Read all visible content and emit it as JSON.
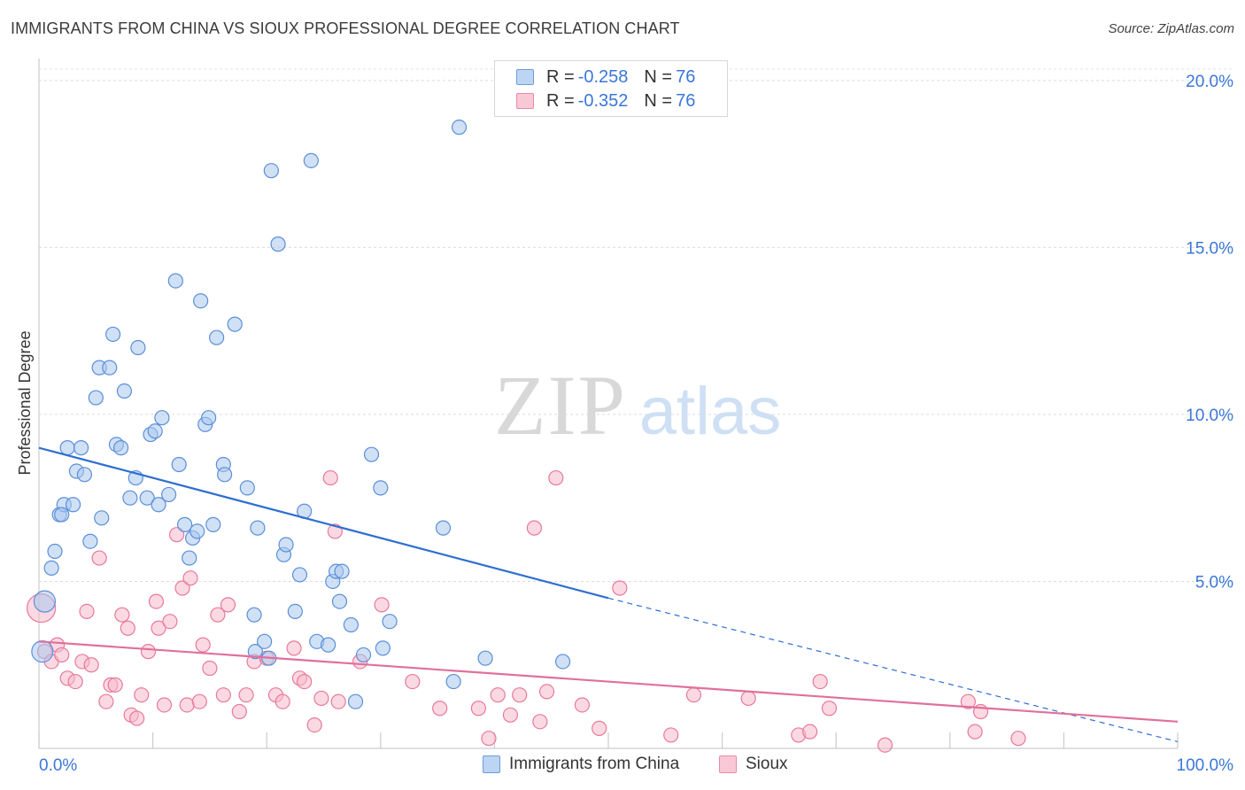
{
  "header": {
    "title": "IMMIGRANTS FROM CHINA VS SIOUX PROFESSIONAL DEGREE CORRELATION CHART",
    "source": "Source: ZipAtlas.com"
  },
  "watermark": {
    "zip": "ZIP",
    "atlas": "atlas"
  },
  "legend_top": {
    "rows": [
      {
        "r_label": "R =",
        "r_value": "-0.258",
        "n_label": "N =",
        "n_value": "76"
      },
      {
        "r_label": "R =",
        "r_value": "-0.352",
        "n_label": "N =",
        "n_value": "76"
      }
    ]
  },
  "legend_bottom": {
    "series1": "Immigrants from China",
    "series2": "Sioux"
  },
  "chart_data": {
    "type": "scatter",
    "title": "IMMIGRANTS FROM CHINA VS SIOUX PROFESSIONAL DEGREE CORRELATION CHART",
    "xlabel": "",
    "ylabel": "Professional Degree",
    "xlim": [
      0,
      100
    ],
    "ylim": [
      0,
      20.5
    ],
    "x_tick_labels": [
      "0.0%",
      "100.0%"
    ],
    "y_ticks": [
      5,
      10,
      15,
      20
    ],
    "y_tick_labels": [
      "5.0%",
      "10.0%",
      "15.0%",
      "20.0%"
    ],
    "grid": true,
    "legend_position": "top-center and bottom",
    "colors": {
      "china_fill": "#a9c8ef",
      "china_stroke": "#5b8fd8",
      "china_line": "#2f6fd0",
      "sioux_fill": "#f7b9cc",
      "sioux_stroke": "#e8799b",
      "sioux_line": "#e0709a",
      "tick_label": "#3a77d8"
    },
    "series": [
      {
        "name": "Immigrants from China",
        "r": -0.258,
        "n": 76,
        "trend": {
          "x": [
            0,
            50
          ],
          "y": [
            9.0,
            4.5
          ],
          "dashed_to": [
            100,
            0.2
          ]
        },
        "points": [
          [
            0.5,
            4.4
          ],
          [
            0.3,
            2.9
          ],
          [
            1.1,
            5.4
          ],
          [
            1.4,
            5.9
          ],
          [
            1.8,
            7.0
          ],
          [
            2.2,
            7.3
          ],
          [
            3.0,
            7.3
          ],
          [
            2.5,
            9.0
          ],
          [
            3.7,
            9.0
          ],
          [
            3.3,
            8.3
          ],
          [
            4.0,
            8.2
          ],
          [
            4.5,
            6.2
          ],
          [
            5.5,
            6.9
          ],
          [
            5.0,
            10.5
          ],
          [
            5.3,
            11.4
          ],
          [
            6.2,
            11.4
          ],
          [
            6.5,
            12.4
          ],
          [
            7.5,
            10.7
          ],
          [
            6.8,
            9.1
          ],
          [
            7.2,
            9.0
          ],
          [
            8.0,
            7.5
          ],
          [
            8.5,
            8.1
          ],
          [
            8.7,
            12.0
          ],
          [
            9.5,
            7.5
          ],
          [
            9.8,
            9.4
          ],
          [
            10.2,
            9.5
          ],
          [
            10.5,
            7.3
          ],
          [
            10.8,
            9.9
          ],
          [
            11.4,
            7.6
          ],
          [
            12.0,
            14.0
          ],
          [
            12.3,
            8.5
          ],
          [
            12.8,
            6.7
          ],
          [
            13.2,
            5.7
          ],
          [
            13.5,
            6.3
          ],
          [
            13.9,
            6.5
          ],
          [
            14.2,
            13.4
          ],
          [
            14.6,
            9.7
          ],
          [
            14.9,
            9.9
          ],
          [
            15.3,
            6.7
          ],
          [
            15.6,
            12.3
          ],
          [
            16.2,
            8.5
          ],
          [
            16.3,
            8.2
          ],
          [
            17.2,
            12.7
          ],
          [
            18.3,
            7.8
          ],
          [
            18.9,
            4.0
          ],
          [
            19.2,
            6.6
          ],
          [
            19.0,
            2.9
          ],
          [
            19.8,
            3.2
          ],
          [
            20.2,
            2.7
          ],
          [
            20.4,
            17.3
          ],
          [
            21.0,
            15.1
          ],
          [
            21.5,
            5.8
          ],
          [
            21.7,
            6.1
          ],
          [
            22.5,
            4.1
          ],
          [
            22.9,
            5.2
          ],
          [
            23.3,
            7.1
          ],
          [
            23.9,
            17.6
          ],
          [
            24.4,
            3.2
          ],
          [
            25.4,
            3.1
          ],
          [
            25.8,
            5.0
          ],
          [
            26.1,
            5.3
          ],
          [
            26.6,
            5.3
          ],
          [
            26.4,
            4.4
          ],
          [
            27.4,
            3.7
          ],
          [
            27.8,
            1.4
          ],
          [
            28.5,
            2.8
          ],
          [
            29.2,
            8.8
          ],
          [
            30.0,
            7.8
          ],
          [
            30.2,
            3.0
          ],
          [
            30.8,
            3.8
          ],
          [
            35.5,
            6.6
          ],
          [
            36.4,
            2.0
          ],
          [
            36.9,
            18.6
          ],
          [
            39.2,
            2.7
          ],
          [
            46.0,
            2.6
          ],
          [
            2.0,
            7.0
          ]
        ]
      },
      {
        "name": "Sioux",
        "r": -0.352,
        "n": 76,
        "trend": {
          "x": [
            0,
            100
          ],
          "y": [
            3.2,
            0.8
          ]
        },
        "points": [
          [
            0.2,
            4.2
          ],
          [
            0.5,
            2.9
          ],
          [
            1.1,
            2.6
          ],
          [
            1.6,
            3.1
          ],
          [
            2.0,
            2.8
          ],
          [
            2.5,
            2.1
          ],
          [
            3.2,
            2.0
          ],
          [
            3.8,
            2.6
          ],
          [
            4.2,
            4.1
          ],
          [
            4.6,
            2.5
          ],
          [
            5.3,
            5.7
          ],
          [
            5.9,
            1.4
          ],
          [
            6.3,
            1.9
          ],
          [
            6.7,
            1.9
          ],
          [
            7.3,
            4.0
          ],
          [
            7.8,
            3.6
          ],
          [
            8.1,
            1.0
          ],
          [
            8.6,
            0.9
          ],
          [
            9.0,
            1.6
          ],
          [
            9.6,
            2.9
          ],
          [
            10.3,
            4.4
          ],
          [
            10.5,
            3.6
          ],
          [
            11.0,
            1.3
          ],
          [
            11.5,
            3.8
          ],
          [
            12.1,
            6.4
          ],
          [
            12.6,
            4.8
          ],
          [
            13.0,
            1.3
          ],
          [
            13.3,
            5.1
          ],
          [
            14.1,
            1.4
          ],
          [
            14.4,
            3.1
          ],
          [
            15.0,
            2.4
          ],
          [
            15.7,
            4.0
          ],
          [
            16.2,
            1.6
          ],
          [
            16.6,
            4.3
          ],
          [
            17.6,
            1.1
          ],
          [
            18.2,
            1.6
          ],
          [
            18.9,
            2.6
          ],
          [
            20.0,
            2.7
          ],
          [
            20.8,
            1.6
          ],
          [
            21.4,
            1.4
          ],
          [
            22.4,
            3.0
          ],
          [
            22.9,
            2.1
          ],
          [
            23.3,
            2.0
          ],
          [
            24.2,
            0.7
          ],
          [
            24.8,
            1.5
          ],
          [
            25.6,
            8.1
          ],
          [
            26.0,
            6.5
          ],
          [
            26.3,
            1.4
          ],
          [
            28.2,
            2.6
          ],
          [
            30.1,
            4.3
          ],
          [
            32.8,
            2.0
          ],
          [
            35.2,
            1.2
          ],
          [
            38.6,
            1.2
          ],
          [
            39.5,
            0.3
          ],
          [
            40.3,
            1.6
          ],
          [
            41.4,
            1.0
          ],
          [
            42.2,
            1.6
          ],
          [
            43.5,
            6.6
          ],
          [
            44.0,
            0.8
          ],
          [
            44.6,
            1.7
          ],
          [
            45.4,
            8.1
          ],
          [
            47.7,
            1.3
          ],
          [
            49.2,
            0.6
          ],
          [
            51.0,
            4.8
          ],
          [
            55.5,
            0.4
          ],
          [
            57.5,
            1.6
          ],
          [
            62.3,
            1.5
          ],
          [
            66.7,
            0.4
          ],
          [
            67.7,
            0.5
          ],
          [
            68.6,
            2.0
          ],
          [
            69.4,
            1.2
          ],
          [
            74.3,
            0.1
          ],
          [
            81.6,
            1.4
          ],
          [
            82.7,
            1.1
          ],
          [
            82.2,
            0.5
          ],
          [
            86.0,
            0.3
          ]
        ]
      }
    ]
  }
}
